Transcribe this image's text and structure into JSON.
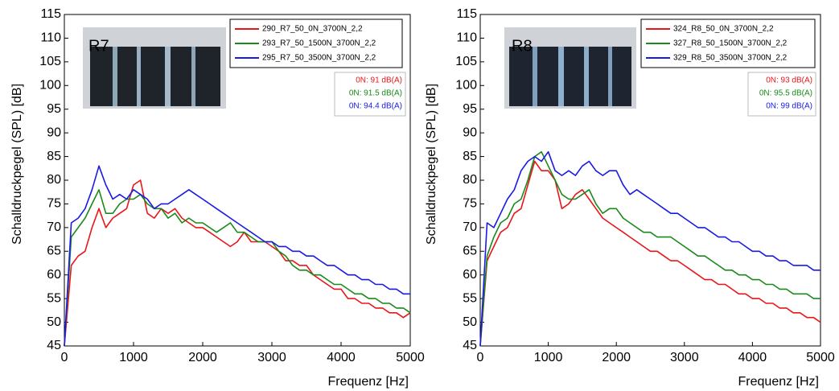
{
  "chart_data": [
    {
      "type": "line",
      "image_label": "R7",
      "xlabel": "Frequenz [Hz]",
      "ylabel": "Schalldruckpegel (SPL) [dB]",
      "xlim": [
        0,
        5000
      ],
      "ylim": [
        45,
        115
      ],
      "xticks": [
        0,
        1000,
        2000,
        3000,
        4000,
        5000
      ],
      "yticks": [
        45,
        50,
        55,
        60,
        65,
        70,
        75,
        80,
        85,
        90,
        95,
        100,
        105,
        110,
        115
      ],
      "grid": false,
      "legend": "upper right",
      "x": [
        0,
        100,
        200,
        300,
        400,
        500,
        600,
        700,
        800,
        900,
        1000,
        1100,
        1200,
        1300,
        1400,
        1500,
        1600,
        1700,
        1800,
        1900,
        2000,
        2100,
        2200,
        2300,
        2400,
        2500,
        2600,
        2700,
        2800,
        2900,
        3000,
        3100,
        3200,
        3300,
        3400,
        3500,
        3600,
        3700,
        3800,
        3900,
        4000,
        4100,
        4200,
        4300,
        4400,
        4500,
        4600,
        4700,
        4800,
        4900,
        5000
      ],
      "series": [
        {
          "name": "290_R7_50_0N_3700N_2,2",
          "color": "#e8161a",
          "values": [
            45,
            62,
            64,
            65,
            70,
            74,
            70,
            72,
            73,
            74,
            79,
            80,
            73,
            72,
            74,
            73,
            74,
            72,
            71,
            70,
            70,
            69,
            68,
            67,
            66,
            67,
            69,
            67,
            67,
            67,
            66,
            65,
            63,
            63,
            62,
            62,
            60,
            59,
            58,
            57,
            57,
            55,
            55,
            54,
            54,
            53,
            53,
            52,
            52,
            51,
            52
          ]
        },
        {
          "name": "293_R7_50_1500N_3700N_2,2",
          "color": "#1a8a1a",
          "values": [
            45,
            68,
            70,
            72,
            75,
            78,
            73,
            73,
            75,
            76,
            76,
            77,
            75,
            74,
            74,
            72,
            73,
            71,
            72,
            71,
            71,
            70,
            69,
            70,
            71,
            69,
            69,
            68,
            67,
            67,
            67,
            65,
            64,
            62,
            61,
            61,
            60,
            60,
            59,
            58,
            58,
            57,
            56,
            56,
            55,
            55,
            54,
            54,
            53,
            53,
            52
          ]
        },
        {
          "name": "295_R7_50_3500N_3700N_2,2",
          "color": "#1a1ae6",
          "values": [
            45,
            71,
            72,
            74,
            78,
            83,
            79,
            76,
            77,
            76,
            78,
            77,
            76,
            74,
            75,
            75,
            76,
            77,
            78,
            77,
            76,
            75,
            74,
            73,
            72,
            71,
            70,
            69,
            68,
            67,
            67,
            66,
            66,
            65,
            65,
            64,
            64,
            63,
            62,
            62,
            61,
            60,
            60,
            59,
            59,
            58,
            58,
            57,
            57,
            56,
            56
          ]
        }
      ],
      "annotations": [
        {
          "text": "0N: 91 dB(A)",
          "color": "#e8161a"
        },
        {
          "text": "0N: 91.5 dB(A)",
          "color": "#1a8a1a"
        },
        {
          "text": "0N: 94.4 dB(A)",
          "color": "#1a1ae6"
        }
      ]
    },
    {
      "type": "line",
      "image_label": "R8",
      "xlabel": "Frequenz [Hz]",
      "ylabel": "Schalldruckpegel (SPL) [dB]",
      "xlim": [
        0,
        5000
      ],
      "ylim": [
        45,
        115
      ],
      "xticks": [
        0,
        1000,
        2000,
        3000,
        4000,
        5000
      ],
      "yticks": [
        45,
        50,
        55,
        60,
        65,
        70,
        75,
        80,
        85,
        90,
        95,
        100,
        105,
        110,
        115
      ],
      "grid": false,
      "legend": "upper right",
      "x": [
        0,
        100,
        200,
        300,
        400,
        500,
        600,
        700,
        800,
        900,
        1000,
        1100,
        1200,
        1300,
        1400,
        1500,
        1600,
        1700,
        1800,
        1900,
        2000,
        2100,
        2200,
        2300,
        2400,
        2500,
        2600,
        2700,
        2800,
        2900,
        3000,
        3100,
        3200,
        3300,
        3400,
        3500,
        3600,
        3700,
        3800,
        3900,
        4000,
        4100,
        4200,
        4300,
        4400,
        4500,
        4600,
        4700,
        4800,
        4900,
        5000
      ],
      "series": [
        {
          "name": "324_R8_50_0N_3700N_2,2",
          "color": "#e8161a",
          "values": [
            45,
            63,
            66,
            69,
            70,
            73,
            74,
            79,
            84,
            82,
            82,
            80,
            74,
            75,
            77,
            78,
            76,
            74,
            72,
            71,
            70,
            69,
            68,
            67,
            66,
            65,
            65,
            64,
            63,
            63,
            62,
            61,
            60,
            59,
            59,
            58,
            58,
            57,
            56,
            56,
            55,
            55,
            54,
            54,
            53,
            53,
            52,
            52,
            51,
            51,
            50
          ]
        },
        {
          "name": "327_R8_50_1500N_3700N_2,2",
          "color": "#1a8a1a",
          "values": [
            45,
            64,
            68,
            71,
            72,
            75,
            76,
            80,
            85,
            86,
            83,
            80,
            77,
            76,
            76,
            77,
            78,
            75,
            73,
            74,
            74,
            72,
            71,
            70,
            69,
            69,
            68,
            68,
            68,
            67,
            66,
            65,
            64,
            64,
            63,
            62,
            61,
            61,
            60,
            60,
            59,
            59,
            58,
            58,
            57,
            57,
            56,
            56,
            56,
            55,
            55
          ]
        },
        {
          "name": "329_R8_50_3500N_3700N_2,2",
          "color": "#1a1ae6",
          "values": [
            45,
            71,
            70,
            73,
            76,
            78,
            82,
            84,
            85,
            84,
            86,
            82,
            81,
            82,
            81,
            83,
            84,
            82,
            81,
            82,
            82,
            79,
            77,
            78,
            77,
            76,
            75,
            74,
            73,
            73,
            72,
            71,
            70,
            70,
            69,
            68,
            68,
            67,
            67,
            66,
            65,
            65,
            64,
            64,
            63,
            63,
            62,
            62,
            62,
            61,
            61
          ]
        }
      ],
      "annotations": [
        {
          "text": "0N: 93 dB(A)",
          "color": "#e8161a"
        },
        {
          "text": "0N: 95.5 dB(A)",
          "color": "#1a8a1a"
        },
        {
          "text": "0N: 99 dB(A)",
          "color": "#1a1ae6"
        }
      ]
    }
  ]
}
